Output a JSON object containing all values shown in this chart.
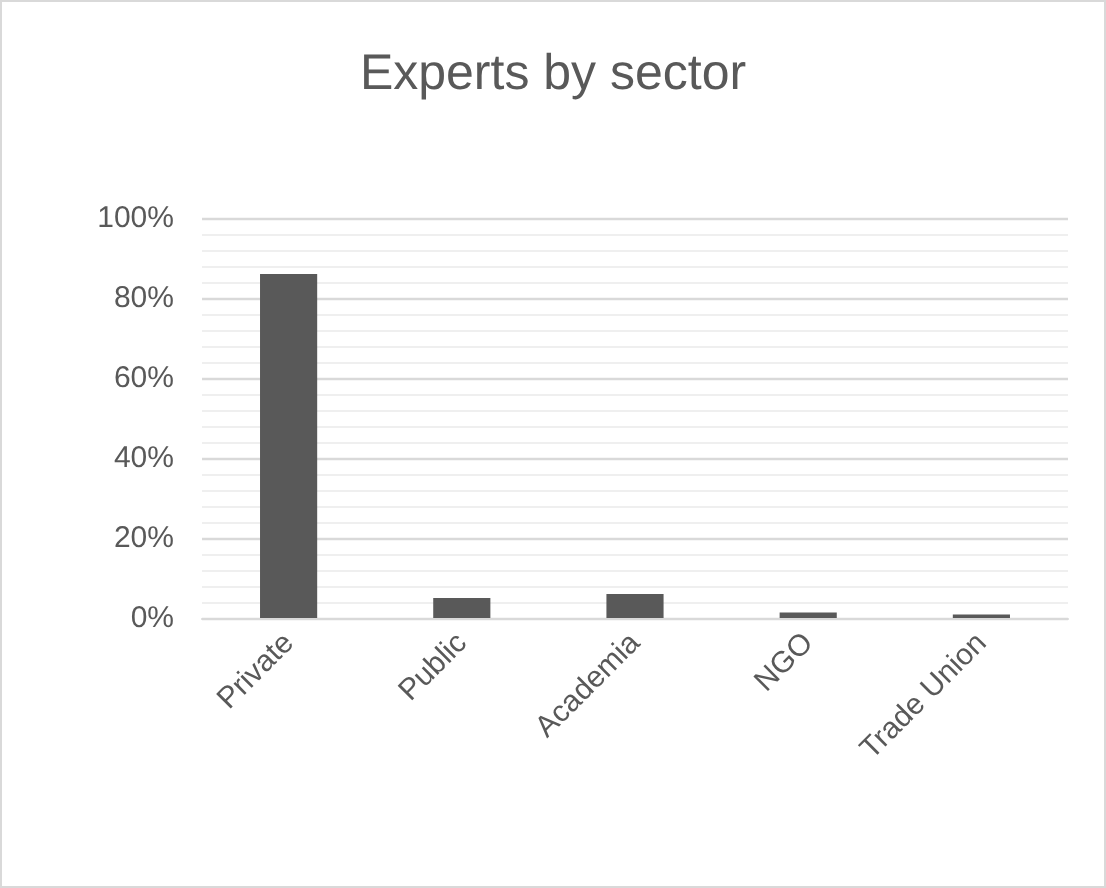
{
  "chart_data": {
    "type": "bar",
    "title": "Experts by sector",
    "categories": [
      "Private",
      "Public",
      "Academia",
      "NGO",
      "Trade Union"
    ],
    "values": [
      86,
      5,
      6,
      1.4,
      0.9
    ],
    "color": "#595959",
    "ylim": [
      0,
      100
    ],
    "yticks": [
      {
        "value": 0,
        "label": "0%"
      },
      {
        "value": 20,
        "label": "20%"
      },
      {
        "value": 40,
        "label": "40%"
      },
      {
        "value": 60,
        "label": "60%"
      },
      {
        "value": 80,
        "label": "80%"
      },
      {
        "value": 100,
        "label": "100%"
      }
    ],
    "grid": "y"
  }
}
